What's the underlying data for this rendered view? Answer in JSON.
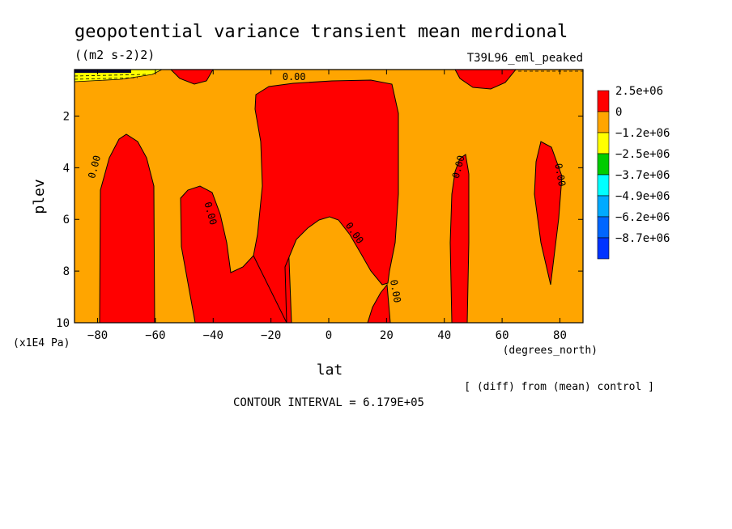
{
  "chart_data": {
    "type": "contour",
    "title": "geopotential variance transient mean merdional",
    "units": "((m2 s-2)2)",
    "run_label": "T39L96_eml_peaked",
    "xlabel": "lat",
    "x_units": "(degrees_north)",
    "ylabel": "plev",
    "y_units": "(x1E4 Pa)",
    "footnote": "[ (diff) from (mean) control ]",
    "contour_interval": "CONTOUR INTERVAL = 6.179E+05",
    "xlim": [
      -88,
      88
    ],
    "ylim": [
      10,
      0.2
    ],
    "x_ticks": [
      -80,
      -60,
      -40,
      -20,
      0,
      20,
      40,
      60,
      80
    ],
    "x_tick_labels": [
      "−80",
      "−60",
      "−40",
      "−20",
      "0",
      "20",
      "40",
      "60",
      "80"
    ],
    "y_ticks": [
      2,
      4,
      6,
      8,
      10
    ],
    "y_tick_labels": [
      "2",
      "4",
      "6",
      "8",
      "10"
    ],
    "contour_labels": [
      "0.00",
      "0.00",
      "0.00",
      "0.00",
      "0.00",
      "0.00",
      "0.00"
    ],
    "legend": {
      "placement": "right",
      "labels": [
        "2.5e+06",
        "0",
        "−1.2e+06",
        "−2.5e+06",
        "−3.7e+06",
        "−4.9e+06",
        "−6.2e+06",
        "−8.7e+06"
      ],
      "colors": [
        "#ff0000",
        "#ffa500",
        "#ffff00",
        "#00cc00",
        "#00ffff",
        "#00aaff",
        "#0066ff",
        "#0033ff"
      ]
    },
    "positive_regions": [
      {
        "name": "southern-high-lat-column",
        "lat": [
          -78,
          -64
        ],
        "plev": [
          2.7,
          10
        ]
      },
      {
        "name": "southern-mid-lat-column",
        "lat": [
          -50,
          -30
        ],
        "plev": [
          4.6,
          10
        ]
      },
      {
        "name": "central-column",
        "lat": [
          -28,
          22
        ],
        "plev": [
          0.5,
          10
        ]
      },
      {
        "name": "top-cap-south",
        "lat": [
          -55,
          -40
        ],
        "plev": [
          0.2,
          0.6
        ]
      },
      {
        "name": "top-cap-north",
        "lat": [
          45,
          70
        ],
        "plev": [
          0.2,
          0.8
        ]
      },
      {
        "name": "northern-mid-lat-column",
        "lat": [
          42,
          50
        ],
        "plev": [
          3.5,
          10
        ]
      },
      {
        "name": "northern-high-lat-tongue",
        "lat": [
          72,
          83
        ],
        "plev": [
          3.0,
          8.5
        ]
      }
    ]
  }
}
